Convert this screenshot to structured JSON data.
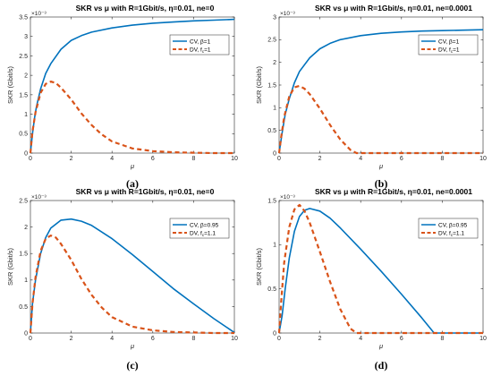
{
  "chart_data": [
    {
      "type": "line",
      "panel_label": "(a)",
      "title": "SKR vs μ with R=1Gbit/s, η=0.01, ne=0",
      "xlabel": "μ",
      "ylabel": "SKR (Gbit/s)",
      "exponent_label": "×10⁻³",
      "xlim": [
        0,
        10
      ],
      "ylim": [
        0,
        3.5
      ],
      "xticks": [
        0,
        2,
        4,
        6,
        8,
        10
      ],
      "yticks": [
        0,
        0.5,
        1,
        1.5,
        2,
        2.5,
        3,
        3.5
      ],
      "grid": false,
      "legend_position": "top-right",
      "series": [
        {
          "name": "CV, β=1",
          "color": "#0072BD",
          "dash": "solid",
          "x": [
            0,
            0.1,
            0.2,
            0.3,
            0.5,
            0.75,
            1,
            1.5,
            2,
            2.5,
            3,
            4,
            5,
            6,
            7,
            8,
            9,
            10
          ],
          "y": [
            0,
            0.5,
            0.9,
            1.2,
            1.65,
            2.05,
            2.3,
            2.67,
            2.9,
            3.02,
            3.11,
            3.22,
            3.29,
            3.34,
            3.37,
            3.4,
            3.42,
            3.44
          ]
        },
        {
          "name": "DV, f_c=1",
          "color": "#D95319",
          "dash": "dashed",
          "x": [
            0,
            0.1,
            0.25,
            0.5,
            0.75,
            1,
            1.25,
            1.5,
            2,
            2.5,
            3,
            3.5,
            4,
            5,
            6,
            7,
            8,
            9,
            10
          ],
          "y": [
            0,
            0.55,
            1.05,
            1.55,
            1.78,
            1.84,
            1.8,
            1.68,
            1.38,
            1.02,
            0.72,
            0.48,
            0.3,
            0.12,
            0.05,
            0.02,
            0.01,
            0,
            0
          ]
        }
      ]
    },
    {
      "type": "line",
      "panel_label": "(b)",
      "title": "SKR vs μ with R=1Gbit/s, η=0.01, ne=0.0001",
      "xlabel": "μ",
      "ylabel": "SKR (Gbit/s)",
      "exponent_label": "×10⁻³",
      "xlim": [
        0,
        10
      ],
      "ylim": [
        0,
        3
      ],
      "xticks": [
        0,
        2,
        4,
        6,
        8,
        10
      ],
      "yticks": [
        0,
        0.5,
        1,
        1.5,
        2,
        2.5,
        3
      ],
      "grid": false,
      "legend_position": "top-right",
      "series": [
        {
          "name": "CV, β=1",
          "color": "#0072BD",
          "dash": "solid",
          "x": [
            0,
            0.15,
            0.3,
            0.5,
            0.75,
            1,
            1.5,
            2,
            2.5,
            3,
            4,
            5,
            6,
            7,
            8,
            9,
            10
          ],
          "y": [
            0,
            0.45,
            0.85,
            1.2,
            1.55,
            1.8,
            2.1,
            2.3,
            2.42,
            2.5,
            2.59,
            2.64,
            2.67,
            2.69,
            2.7,
            2.71,
            2.72
          ]
        },
        {
          "name": "DV, f_c=1",
          "color": "#D95319",
          "dash": "dashed",
          "x": [
            0,
            0.1,
            0.25,
            0.5,
            0.75,
            1,
            1.25,
            1.5,
            2,
            2.5,
            3,
            3.5,
            3.8,
            4,
            5,
            6,
            7,
            8,
            9,
            10
          ],
          "y": [
            0,
            0.35,
            0.8,
            1.25,
            1.45,
            1.48,
            1.42,
            1.3,
            0.98,
            0.62,
            0.3,
            0.07,
            0,
            0,
            0,
            0,
            0,
            0,
            0,
            0
          ]
        }
      ]
    },
    {
      "type": "line",
      "panel_label": "(c)",
      "title": "SKR vs μ with R=1Gbit/s, η=0.01, ne=0",
      "xlabel": "μ",
      "ylabel": "SKR (Gbit/s)",
      "exponent_label": "×10⁻³",
      "xlim": [
        0,
        10
      ],
      "ylim": [
        0,
        2.5
      ],
      "xticks": [
        0,
        2,
        4,
        6,
        8,
        10
      ],
      "yticks": [
        0,
        0.5,
        1,
        1.5,
        2,
        2.5
      ],
      "grid": false,
      "legend_position": "top-right",
      "series": [
        {
          "name": "CV, β=0.95",
          "color": "#0072BD",
          "dash": "solid",
          "x": [
            0,
            0.1,
            0.25,
            0.5,
            0.75,
            1,
            1.5,
            2,
            2.5,
            3,
            4,
            5,
            6,
            7,
            8,
            9,
            10
          ],
          "y": [
            0,
            0.55,
            1.0,
            1.5,
            1.8,
            1.98,
            2.13,
            2.15,
            2.11,
            2.03,
            1.78,
            1.48,
            1.16,
            0.84,
            0.55,
            0.27,
            0.01
          ]
        },
        {
          "name": "DV, f_c=1.1",
          "color": "#D95319",
          "dash": "dashed",
          "x": [
            0,
            0.1,
            0.25,
            0.5,
            0.75,
            1,
            1.25,
            1.5,
            2,
            2.5,
            3,
            3.5,
            4,
            5,
            6,
            7,
            8,
            9,
            10
          ],
          "y": [
            0,
            0.55,
            1.05,
            1.55,
            1.78,
            1.84,
            1.8,
            1.68,
            1.38,
            1.02,
            0.72,
            0.48,
            0.3,
            0.12,
            0.05,
            0.02,
            0.01,
            0,
            0
          ]
        }
      ]
    },
    {
      "type": "line",
      "panel_label": "(d)",
      "title": "SKR vs μ with R=1Gbit/s, η=0.01, ne=0.0001",
      "xlabel": "μ",
      "ylabel": "SKR (Gbit/s)",
      "exponent_label": "×10⁻³",
      "xlim": [
        0,
        10
      ],
      "ylim": [
        0,
        1.5
      ],
      "xticks": [
        0,
        2,
        4,
        6,
        8,
        10
      ],
      "yticks": [
        0,
        0.5,
        1,
        1.5
      ],
      "grid": false,
      "legend_position": "top-right",
      "series": [
        {
          "name": "CV, β=0.95",
          "color": "#0072BD",
          "dash": "solid",
          "x": [
            0,
            0.15,
            0.3,
            0.5,
            0.75,
            1,
            1.25,
            1.5,
            2,
            2.5,
            3,
            4,
            5,
            6,
            7,
            7.6,
            8,
            9,
            10
          ],
          "y": [
            0,
            0.2,
            0.5,
            0.85,
            1.15,
            1.32,
            1.39,
            1.41,
            1.38,
            1.3,
            1.19,
            0.95,
            0.7,
            0.44,
            0.17,
            0,
            0,
            0,
            0
          ]
        },
        {
          "name": "DV, f_c=1.1",
          "color": "#D95319",
          "dash": "dashed",
          "x": [
            0,
            0.1,
            0.25,
            0.5,
            0.75,
            1,
            1.25,
            1.5,
            2,
            2.5,
            3,
            3.5,
            3.8,
            4,
            5,
            6,
            7,
            8,
            9,
            10
          ],
          "y": [
            0,
            0.35,
            0.8,
            1.2,
            1.4,
            1.45,
            1.38,
            1.25,
            0.92,
            0.58,
            0.27,
            0.05,
            0,
            0,
            0,
            0,
            0,
            0,
            0,
            0
          ]
        }
      ]
    }
  ]
}
